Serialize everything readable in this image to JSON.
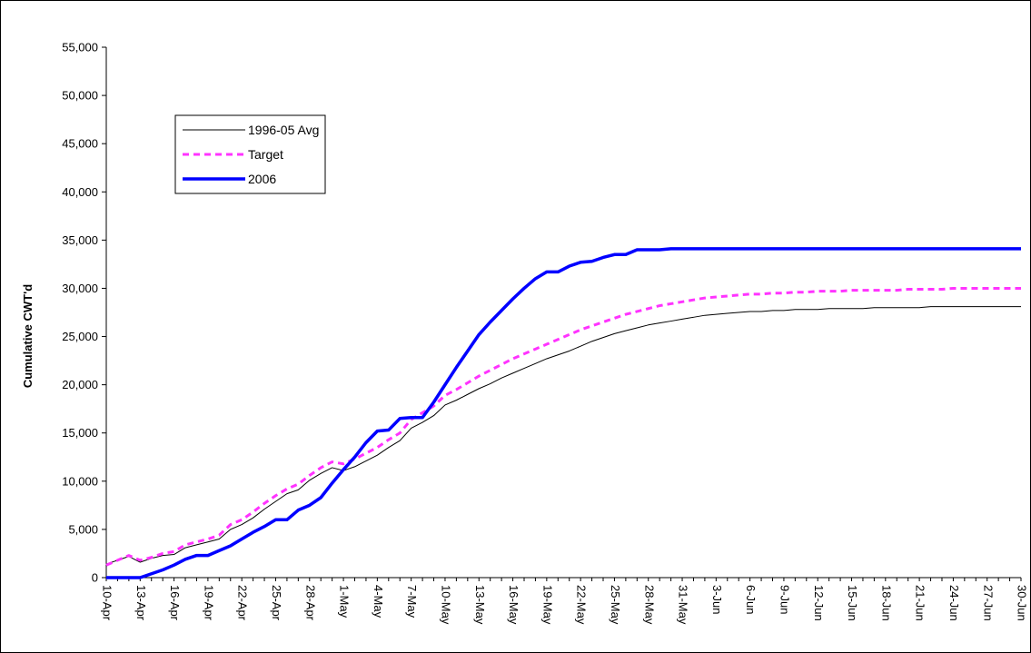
{
  "chart_data": {
    "type": "line",
    "title": "",
    "xlabel": "",
    "ylabel": "Cumulative CWT'd",
    "ylim": [
      0,
      55000
    ],
    "y_ticks": [
      0,
      5000,
      10000,
      15000,
      20000,
      25000,
      30000,
      35000,
      40000,
      45000,
      50000,
      55000
    ],
    "y_tick_labels": [
      "0",
      "5,000",
      "10,000",
      "15,000",
      "20,000",
      "25,000",
      "30,000",
      "35,000",
      "40,000",
      "45,000",
      "50,000",
      "55,000"
    ],
    "x_tick_labels": [
      "10-Apr",
      "13-Apr",
      "16-Apr",
      "19-Apr",
      "22-Apr",
      "25-Apr",
      "28-Apr",
      "1-May",
      "4-May",
      "7-May",
      "10-May",
      "13-May",
      "16-May",
      "19-May",
      "22-May",
      "25-May",
      "28-May",
      "31-May",
      "3-Jun",
      "6-Jun",
      "9-Jun",
      "12-Jun",
      "15-Jun",
      "18-Jun",
      "21-Jun",
      "24-Jun",
      "27-Jun",
      "30-Jun"
    ],
    "grid": false,
    "legend_position": "top-left",
    "x_start": "10-Apr",
    "x_end": "30-Jun",
    "series": [
      {
        "name": "1996-05 Avg",
        "color": "#000000",
        "style": "solid-thin",
        "points": [
          [
            "10-Apr",
            1400
          ],
          [
            "11-Apr",
            1800
          ],
          [
            "12-Apr",
            2200
          ],
          [
            "13-Apr",
            1600
          ],
          [
            "14-Apr",
            2000
          ],
          [
            "15-Apr",
            2300
          ],
          [
            "16-Apr",
            2400
          ],
          [
            "17-Apr",
            3100
          ],
          [
            "18-Apr",
            3400
          ],
          [
            "19-Apr",
            3700
          ],
          [
            "20-Apr",
            4000
          ],
          [
            "21-Apr",
            5000
          ],
          [
            "22-Apr",
            5500
          ],
          [
            "23-Apr",
            6200
          ],
          [
            "24-Apr",
            7100
          ],
          [
            "25-Apr",
            7900
          ],
          [
            "26-Apr",
            8700
          ],
          [
            "27-Apr",
            9100
          ],
          [
            "28-Apr",
            10100
          ],
          [
            "29-Apr",
            10800
          ],
          [
            "30-Apr",
            11400
          ],
          [
            "1-May",
            11100
          ],
          [
            "2-May",
            11500
          ],
          [
            "3-May",
            12100
          ],
          [
            "4-May",
            12700
          ],
          [
            "5-May",
            13500
          ],
          [
            "6-May",
            14200
          ],
          [
            "7-May",
            15500
          ],
          [
            "8-May",
            16100
          ],
          [
            "9-May",
            16800
          ],
          [
            "10-May",
            17900
          ],
          [
            "11-May",
            18400
          ],
          [
            "12-May",
            19000
          ],
          [
            "13-May",
            19600
          ],
          [
            "14-May",
            20100
          ],
          [
            "15-May",
            20700
          ],
          [
            "16-May",
            21200
          ],
          [
            "17-May",
            21700
          ],
          [
            "18-May",
            22200
          ],
          [
            "19-May",
            22700
          ],
          [
            "20-May",
            23100
          ],
          [
            "21-May",
            23500
          ],
          [
            "22-May",
            24000
          ],
          [
            "23-May",
            24500
          ],
          [
            "24-May",
            24900
          ],
          [
            "25-May",
            25300
          ],
          [
            "26-May",
            25600
          ],
          [
            "27-May",
            25900
          ],
          [
            "28-May",
            26200
          ],
          [
            "29-May",
            26400
          ],
          [
            "30-May",
            26600
          ],
          [
            "31-May",
            26800
          ],
          [
            "1-Jun",
            27000
          ],
          [
            "2-Jun",
            27200
          ],
          [
            "3-Jun",
            27300
          ],
          [
            "4-Jun",
            27400
          ],
          [
            "5-Jun",
            27500
          ],
          [
            "6-Jun",
            27600
          ],
          [
            "7-Jun",
            27600
          ],
          [
            "8-Jun",
            27700
          ],
          [
            "9-Jun",
            27700
          ],
          [
            "10-Jun",
            27800
          ],
          [
            "11-Jun",
            27800
          ],
          [
            "12-Jun",
            27800
          ],
          [
            "13-Jun",
            27900
          ],
          [
            "14-Jun",
            27900
          ],
          [
            "15-Jun",
            27900
          ],
          [
            "16-Jun",
            27900
          ],
          [
            "17-Jun",
            28000
          ],
          [
            "18-Jun",
            28000
          ],
          [
            "19-Jun",
            28000
          ],
          [
            "20-Jun",
            28000
          ],
          [
            "21-Jun",
            28000
          ],
          [
            "22-Jun",
            28100
          ],
          [
            "23-Jun",
            28100
          ],
          [
            "24-Jun",
            28100
          ],
          [
            "25-Jun",
            28100
          ],
          [
            "26-Jun",
            28100
          ],
          [
            "27-Jun",
            28100
          ],
          [
            "28-Jun",
            28100
          ],
          [
            "29-Jun",
            28100
          ],
          [
            "30-Jun",
            28100
          ]
        ]
      },
      {
        "name": "Target",
        "color": "#ff33ff",
        "style": "dashed",
        "points": [
          [
            "10-Apr",
            1300
          ],
          [
            "11-Apr",
            1800
          ],
          [
            "12-Apr",
            2300
          ],
          [
            "13-Apr",
            1800
          ],
          [
            "14-Apr",
            2100
          ],
          [
            "15-Apr",
            2500
          ],
          [
            "16-Apr",
            2700
          ],
          [
            "17-Apr",
            3400
          ],
          [
            "18-Apr",
            3700
          ],
          [
            "19-Apr",
            4000
          ],
          [
            "20-Apr",
            4400
          ],
          [
            "21-Apr",
            5500
          ],
          [
            "22-Apr",
            6000
          ],
          [
            "23-Apr",
            6800
          ],
          [
            "24-Apr",
            7700
          ],
          [
            "25-Apr",
            8500
          ],
          [
            "26-Apr",
            9200
          ],
          [
            "27-Apr",
            9700
          ],
          [
            "28-Apr",
            10600
          ],
          [
            "29-Apr",
            11400
          ],
          [
            "30-Apr",
            12000
          ],
          [
            "1-May",
            11800
          ],
          [
            "2-May",
            12300
          ],
          [
            "3-May",
            12900
          ],
          [
            "4-May",
            13500
          ],
          [
            "5-May",
            14300
          ],
          [
            "6-May",
            15000
          ],
          [
            "7-May",
            16400
          ],
          [
            "8-May",
            17100
          ],
          [
            "9-May",
            17800
          ],
          [
            "10-May",
            18900
          ],
          [
            "11-May",
            19500
          ],
          [
            "12-May",
            20200
          ],
          [
            "13-May",
            20900
          ],
          [
            "14-May",
            21500
          ],
          [
            "15-May",
            22100
          ],
          [
            "16-May",
            22700
          ],
          [
            "17-May",
            23200
          ],
          [
            "18-May",
            23700
          ],
          [
            "19-May",
            24200
          ],
          [
            "20-May",
            24700
          ],
          [
            "21-May",
            25200
          ],
          [
            "22-May",
            25700
          ],
          [
            "23-May",
            26100
          ],
          [
            "24-May",
            26500
          ],
          [
            "25-May",
            26900
          ],
          [
            "26-May",
            27300
          ],
          [
            "27-May",
            27600
          ],
          [
            "28-May",
            27900
          ],
          [
            "29-May",
            28200
          ],
          [
            "30-May",
            28400
          ],
          [
            "31-May",
            28600
          ],
          [
            "1-Jun",
            28800
          ],
          [
            "2-Jun",
            29000
          ],
          [
            "3-Jun",
            29100
          ],
          [
            "4-Jun",
            29200
          ],
          [
            "5-Jun",
            29300
          ],
          [
            "6-Jun",
            29400
          ],
          [
            "7-Jun",
            29400
          ],
          [
            "8-Jun",
            29500
          ],
          [
            "9-Jun",
            29500
          ],
          [
            "10-Jun",
            29600
          ],
          [
            "11-Jun",
            29600
          ],
          [
            "12-Jun",
            29700
          ],
          [
            "13-Jun",
            29700
          ],
          [
            "14-Jun",
            29700
          ],
          [
            "15-Jun",
            29800
          ],
          [
            "16-Jun",
            29800
          ],
          [
            "17-Jun",
            29800
          ],
          [
            "18-Jun",
            29800
          ],
          [
            "19-Jun",
            29800
          ],
          [
            "20-Jun",
            29900
          ],
          [
            "21-Jun",
            29900
          ],
          [
            "22-Jun",
            29900
          ],
          [
            "23-Jun",
            29900
          ],
          [
            "24-Jun",
            30000
          ],
          [
            "25-Jun",
            30000
          ],
          [
            "26-Jun",
            30000
          ],
          [
            "27-Jun",
            30000
          ],
          [
            "28-Jun",
            30000
          ],
          [
            "29-Jun",
            30000
          ],
          [
            "30-Jun",
            30000
          ]
        ]
      },
      {
        "name": "2006",
        "color": "#0000ff",
        "style": "solid-thick",
        "points": [
          [
            "10-Apr",
            0
          ],
          [
            "11-Apr",
            0
          ],
          [
            "12-Apr",
            0
          ],
          [
            "13-Apr",
            0
          ],
          [
            "14-Apr",
            400
          ],
          [
            "15-Apr",
            800
          ],
          [
            "16-Apr",
            1300
          ],
          [
            "17-Apr",
            1900
          ],
          [
            "18-Apr",
            2300
          ],
          [
            "19-Apr",
            2300
          ],
          [
            "20-Apr",
            2800
          ],
          [
            "21-Apr",
            3300
          ],
          [
            "22-Apr",
            4000
          ],
          [
            "23-Apr",
            4700
          ],
          [
            "24-Apr",
            5300
          ],
          [
            "25-Apr",
            6000
          ],
          [
            "26-Apr",
            6000
          ],
          [
            "27-Apr",
            7000
          ],
          [
            "28-Apr",
            7500
          ],
          [
            "29-Apr",
            8300
          ],
          [
            "30-Apr",
            9800
          ],
          [
            "1-May",
            11200
          ],
          [
            "2-May",
            12500
          ],
          [
            "3-May",
            14000
          ],
          [
            "4-May",
            15200
          ],
          [
            "5-May",
            15300
          ],
          [
            "6-May",
            16500
          ],
          [
            "7-May",
            16600
          ],
          [
            "8-May",
            16600
          ],
          [
            "9-May",
            18200
          ],
          [
            "10-May",
            20000
          ],
          [
            "11-May",
            21800
          ],
          [
            "12-May",
            23500
          ],
          [
            "13-May",
            25200
          ],
          [
            "14-May",
            26500
          ],
          [
            "15-May",
            27700
          ],
          [
            "16-May",
            28900
          ],
          [
            "17-May",
            30000
          ],
          [
            "18-May",
            31000
          ],
          [
            "19-May",
            31700
          ],
          [
            "20-May",
            31700
          ],
          [
            "21-May",
            32300
          ],
          [
            "22-May",
            32700
          ],
          [
            "23-May",
            32800
          ],
          [
            "24-May",
            33200
          ],
          [
            "25-May",
            33500
          ],
          [
            "26-May",
            33500
          ],
          [
            "27-May",
            34000
          ],
          [
            "28-May",
            34000
          ],
          [
            "29-May",
            34000
          ],
          [
            "30-May",
            34100
          ],
          [
            "31-May",
            34100
          ],
          [
            "1-Jun",
            34100
          ],
          [
            "2-Jun",
            34100
          ],
          [
            "3-Jun",
            34100
          ],
          [
            "4-Jun",
            34100
          ],
          [
            "5-Jun",
            34100
          ],
          [
            "6-Jun",
            34100
          ],
          [
            "7-Jun",
            34100
          ],
          [
            "8-Jun",
            34100
          ],
          [
            "9-Jun",
            34100
          ],
          [
            "10-Jun",
            34100
          ],
          [
            "11-Jun",
            34100
          ],
          [
            "12-Jun",
            34100
          ],
          [
            "13-Jun",
            34100
          ],
          [
            "14-Jun",
            34100
          ],
          [
            "15-Jun",
            34100
          ],
          [
            "16-Jun",
            34100
          ],
          [
            "17-Jun",
            34100
          ],
          [
            "18-Jun",
            34100
          ],
          [
            "19-Jun",
            34100
          ],
          [
            "20-Jun",
            34100
          ],
          [
            "21-Jun",
            34100
          ],
          [
            "22-Jun",
            34100
          ],
          [
            "23-Jun",
            34100
          ],
          [
            "24-Jun",
            34100
          ],
          [
            "25-Jun",
            34100
          ],
          [
            "26-Jun",
            34100
          ],
          [
            "27-Jun",
            34100
          ],
          [
            "28-Jun",
            34100
          ],
          [
            "29-Jun",
            34100
          ],
          [
            "30-Jun",
            34100
          ]
        ]
      }
    ]
  }
}
